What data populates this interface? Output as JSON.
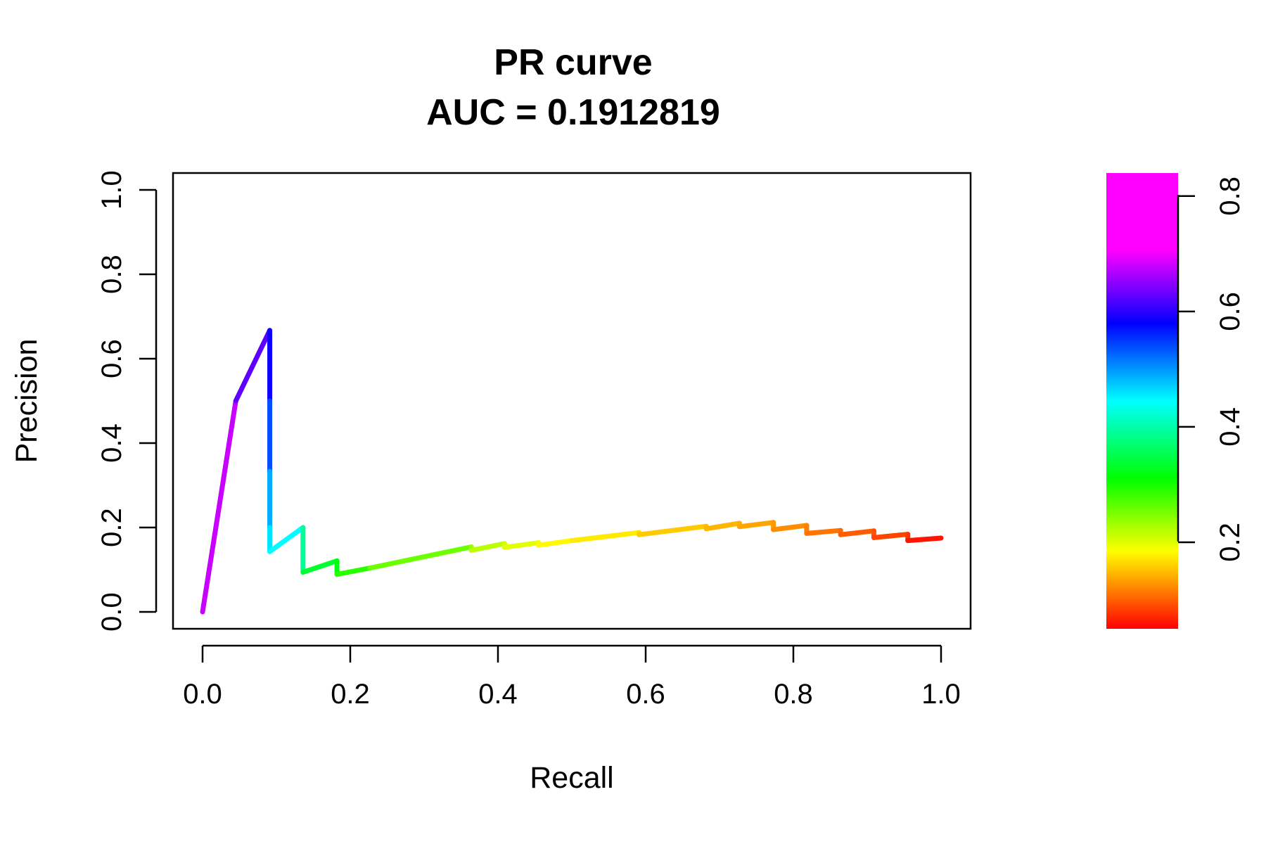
{
  "chart_data": {
    "type": "line",
    "title": "PR curve",
    "subtitle": "AUC = 0.1912819",
    "xlabel": "Recall",
    "ylabel": "Precision",
    "xlim": [
      0.0,
      1.0
    ],
    "ylim": [
      0.0,
      1.0
    ],
    "xticks": [
      "0.0",
      "0.2",
      "0.4",
      "0.6",
      "0.8",
      "1.0"
    ],
    "yticks": [
      "0.0",
      "0.2",
      "0.4",
      "0.6",
      "0.8",
      "1.0"
    ],
    "grid": false,
    "colorbar": {
      "min": 0.05,
      "max": 0.84,
      "ticks": [
        "0.2",
        "0.4",
        "0.6",
        "0.8"
      ],
      "colormap": "rainbow"
    },
    "points": [
      {
        "x": 0.0,
        "y": 0.0,
        "t": 0.84
      },
      {
        "x": 0.045,
        "y": 0.5,
        "t": 0.77
      },
      {
        "x": 0.091,
        "y": 0.667,
        "t": 0.71
      },
      {
        "x": 0.091,
        "y": 0.5,
        "t": 0.67
      },
      {
        "x": 0.091,
        "y": 0.333,
        "t": 0.6
      },
      {
        "x": 0.091,
        "y": 0.2,
        "t": 0.55
      },
      {
        "x": 0.091,
        "y": 0.143,
        "t": 0.53
      },
      {
        "x": 0.136,
        "y": 0.2,
        "t": 0.52
      },
      {
        "x": 0.136,
        "y": 0.094,
        "t": 0.4
      },
      {
        "x": 0.182,
        "y": 0.121,
        "t": 0.39
      },
      {
        "x": 0.182,
        "y": 0.089,
        "t": 0.36
      },
      {
        "x": 0.227,
        "y": 0.104,
        "t": 0.32
      },
      {
        "x": 0.364,
        "y": 0.154,
        "t": 0.28
      },
      {
        "x": 0.364,
        "y": 0.146,
        "t": 0.26
      },
      {
        "x": 0.409,
        "y": 0.162,
        "t": 0.24
      },
      {
        "x": 0.409,
        "y": 0.153,
        "t": 0.23
      },
      {
        "x": 0.455,
        "y": 0.164,
        "t": 0.22
      },
      {
        "x": 0.455,
        "y": 0.158,
        "t": 0.21
      },
      {
        "x": 0.5,
        "y": 0.169,
        "t": 0.2
      },
      {
        "x": 0.591,
        "y": 0.188,
        "t": 0.19
      },
      {
        "x": 0.591,
        "y": 0.183,
        "t": 0.18
      },
      {
        "x": 0.682,
        "y": 0.203,
        "t": 0.17
      },
      {
        "x": 0.682,
        "y": 0.197,
        "t": 0.165
      },
      {
        "x": 0.727,
        "y": 0.21,
        "t": 0.16
      },
      {
        "x": 0.727,
        "y": 0.202,
        "t": 0.155
      },
      {
        "x": 0.773,
        "y": 0.212,
        "t": 0.15
      },
      {
        "x": 0.773,
        "y": 0.195,
        "t": 0.14
      },
      {
        "x": 0.818,
        "y": 0.205,
        "t": 0.135
      },
      {
        "x": 0.818,
        "y": 0.186,
        "t": 0.125
      },
      {
        "x": 0.864,
        "y": 0.193,
        "t": 0.12
      },
      {
        "x": 0.864,
        "y": 0.183,
        "t": 0.11
      },
      {
        "x": 0.909,
        "y": 0.192,
        "t": 0.105
      },
      {
        "x": 0.909,
        "y": 0.176,
        "t": 0.095
      },
      {
        "x": 0.955,
        "y": 0.184,
        "t": 0.09
      },
      {
        "x": 0.955,
        "y": 0.169,
        "t": 0.075
      },
      {
        "x": 1.0,
        "y": 0.175,
        "t": 0.05
      }
    ]
  }
}
